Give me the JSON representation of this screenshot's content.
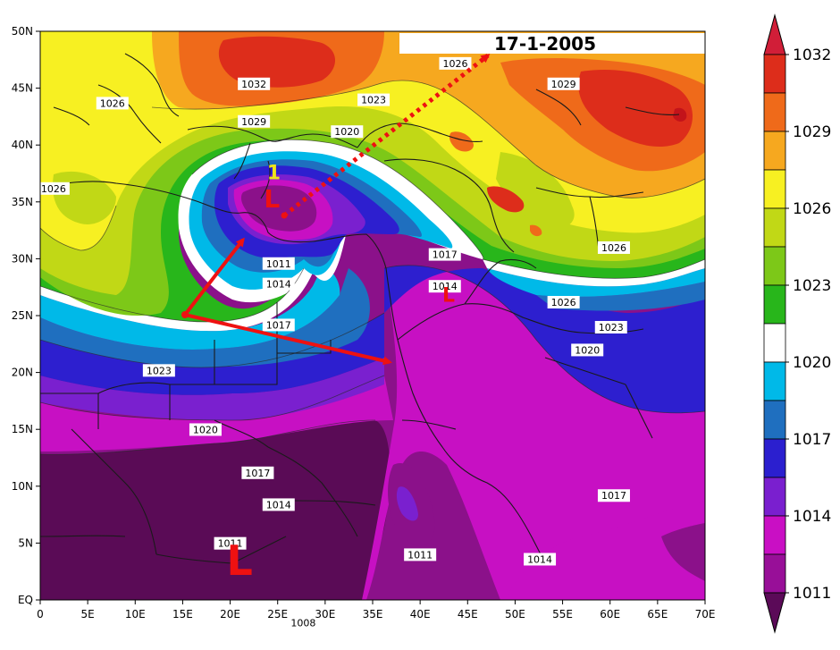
{
  "date_label": "17-1-2005",
  "axes": {
    "y_ticks": [
      "50N",
      "45N",
      "40N",
      "35N",
      "30N",
      "25N",
      "20N",
      "15N",
      "10N",
      "5N",
      "EQ"
    ],
    "x_ticks": [
      "0",
      "5E",
      "10E",
      "15E",
      "20E",
      "25E",
      "30E",
      "35E",
      "40E",
      "45E",
      "50E",
      "55E",
      "60E",
      "65E",
      "70E"
    ]
  },
  "contour_labels": [
    {
      "text": "1032",
      "lon": 22.5,
      "lat": 45.3
    },
    {
      "text": "1029",
      "lon": 22.5,
      "lat": 42.0
    },
    {
      "text": "1026",
      "lon": 7.6,
      "lat": 43.6
    },
    {
      "text": "1026",
      "lon": 1.4,
      "lat": 36.1
    },
    {
      "text": "1026",
      "lon": 43.7,
      "lat": 47.1
    },
    {
      "text": "1023",
      "lon": 35.1,
      "lat": 43.9
    },
    {
      "text": "1020",
      "lon": 32.3,
      "lat": 41.1
    },
    {
      "text": "1029",
      "lon": 55.1,
      "lat": 45.3
    },
    {
      "text": "1026",
      "lon": 60.4,
      "lat": 30.9
    },
    {
      "text": "1026",
      "lon": 55.1,
      "lat": 26.1
    },
    {
      "text": "1023",
      "lon": 60.1,
      "lat": 23.9
    },
    {
      "text": "1020",
      "lon": 57.6,
      "lat": 21.9
    },
    {
      "text": "1017",
      "lon": 42.6,
      "lat": 30.3
    },
    {
      "text": "1014",
      "lon": 42.6,
      "lat": 27.5
    },
    {
      "text": "1011",
      "lon": 25.1,
      "lat": 29.5
    },
    {
      "text": "1014",
      "lon": 25.1,
      "lat": 27.7
    },
    {
      "text": "1017",
      "lon": 25.1,
      "lat": 24.1
    },
    {
      "text": "1023",
      "lon": 12.5,
      "lat": 20.1
    },
    {
      "text": "1020",
      "lon": 17.4,
      "lat": 14.9
    },
    {
      "text": "1017",
      "lon": 22.9,
      "lat": 11.1
    },
    {
      "text": "1014",
      "lon": 25.1,
      "lat": 8.3
    },
    {
      "text": "1011",
      "lon": 20.0,
      "lat": 4.9
    },
    {
      "text": "1011",
      "lon": 40.0,
      "lat": 3.9
    },
    {
      "text": "1017",
      "lon": 60.4,
      "lat": 9.1
    },
    {
      "text": "1014",
      "lon": 52.6,
      "lat": 3.5
    },
    {
      "text": "1008",
      "lon": 27.7,
      "lat": -2.1
    }
  ],
  "low_markers": [
    {
      "text": "L",
      "lon": 24.4,
      "lat": 34.5,
      "size": 28
    },
    {
      "text": "L",
      "lon": 43.0,
      "lat": 26.2,
      "size": 22
    },
    {
      "text": "L",
      "lon": 21.0,
      "lat": 2.2,
      "size": 46
    }
  ],
  "annotation_number": {
    "text": "1",
    "lon": 24.6,
    "lat": 37.0
  },
  "colorbar": {
    "labels": [
      "1032",
      "1029",
      "1026",
      "1023",
      "1020",
      "1017",
      "1014",
      "1011"
    ],
    "colors": [
      "#dd2d1b",
      "#ef6a1a",
      "#f6a81f",
      "#f7f022",
      "#c1d816",
      "#7dc818",
      "#28b61b",
      "#ffffff",
      "#00b9e8",
      "#1f6fbf",
      "#2b1fcf",
      "#7a1fcf",
      "#c90fc4",
      "#980f98"
    ],
    "top_color": "#d11e38",
    "bottom_color": "#5b0a58"
  },
  "field_colors": {
    "p1008": "#5a0b56",
    "p1011": "#8b118a",
    "p1014": "#c710c3",
    "p1015": "#7a20cf",
    "p1017": "#2d1fcf",
    "p1018": "#1f6fbf",
    "p1020": "#00b9e8",
    "p1021": "#ffffff",
    "p1022": "#28b61b",
    "p1024": "#7dc818",
    "p1025": "#c1d816",
    "p1026": "#f7f022",
    "p1028": "#f6a81f",
    "p1029": "#ef6a1a",
    "p1031": "#dd2d1b",
    "p1033": "#c3131a"
  }
}
